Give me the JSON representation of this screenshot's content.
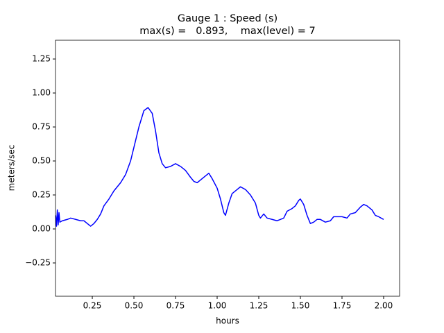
{
  "chart_data": {
    "type": "line",
    "title": "Gauge 1 : Speed (s)",
    "subtitle": "max(s) =   0.893,    max(level) = 7",
    "x_label": "hours",
    "y_label": "meters/sec",
    "series": [
      {
        "color": "#0000ff",
        "x": [
          0.03,
          0.035,
          0.04,
          0.045,
          0.05,
          0.055,
          0.07,
          0.1,
          0.12,
          0.15,
          0.18,
          0.2,
          0.22,
          0.24,
          0.26,
          0.28,
          0.3,
          0.32,
          0.35,
          0.38,
          0.42,
          0.45,
          0.48,
          0.5,
          0.53,
          0.56,
          0.585,
          0.61,
          0.63,
          0.65,
          0.67,
          0.69,
          0.72,
          0.75,
          0.78,
          0.81,
          0.84,
          0.86,
          0.88,
          0.9,
          0.93,
          0.95,
          0.97,
          1.0,
          1.02,
          1.04,
          1.05,
          1.07,
          1.09,
          1.12,
          1.14,
          1.17,
          1.2,
          1.23,
          1.25,
          1.26,
          1.28,
          1.3,
          1.33,
          1.36,
          1.38,
          1.4,
          1.42,
          1.45,
          1.47,
          1.49,
          1.5,
          1.52,
          1.54,
          1.56,
          1.58,
          1.6,
          1.62,
          1.65,
          1.68,
          1.7,
          1.72,
          1.75,
          1.78,
          1.8,
          1.83,
          1.86,
          1.88,
          1.9,
          1.93,
          1.95,
          1.97,
          2.0
        ],
        "values": [
          0.1,
          0.02,
          0.14,
          0.03,
          0.12,
          0.05,
          0.06,
          0.07,
          0.08,
          0.07,
          0.06,
          0.06,
          0.04,
          0.02,
          0.04,
          0.07,
          0.11,
          0.17,
          0.22,
          0.28,
          0.34,
          0.4,
          0.5,
          0.6,
          0.75,
          0.87,
          0.893,
          0.85,
          0.72,
          0.56,
          0.48,
          0.45,
          0.46,
          0.48,
          0.46,
          0.43,
          0.38,
          0.35,
          0.34,
          0.36,
          0.39,
          0.41,
          0.37,
          0.3,
          0.22,
          0.12,
          0.1,
          0.19,
          0.26,
          0.29,
          0.31,
          0.29,
          0.25,
          0.19,
          0.1,
          0.08,
          0.11,
          0.08,
          0.07,
          0.06,
          0.07,
          0.08,
          0.13,
          0.15,
          0.17,
          0.21,
          0.22,
          0.18,
          0.1,
          0.04,
          0.05,
          0.07,
          0.07,
          0.05,
          0.06,
          0.09,
          0.09,
          0.09,
          0.08,
          0.11,
          0.12,
          0.16,
          0.18,
          0.17,
          0.14,
          0.1,
          0.09,
          0.07
        ]
      }
    ],
    "xlim": [
      0.029,
      2.096
    ],
    "ylim": [
      -0.495,
      1.388
    ],
    "xticks": [
      0.25,
      {
        "value": 0.5,
        "label": "0.50"
      },
      0.75,
      {
        "value": 1,
        "label": "1.00"
      },
      1.25,
      {
        "value": 1.5,
        "label": "1.50"
      },
      1.75,
      {
        "value": 2,
        "label": "2.00"
      }
    ],
    "yticks": [
      {
        "value": -0.25,
        "label": "−0.25"
      },
      {
        "value": 0,
        "label": "0.00"
      },
      0.25,
      {
        "value": 0.5,
        "label": "0.50"
      },
      0.75,
      {
        "value": 1,
        "label": "1.00"
      },
      1.25
    ],
    "grid": false
  }
}
